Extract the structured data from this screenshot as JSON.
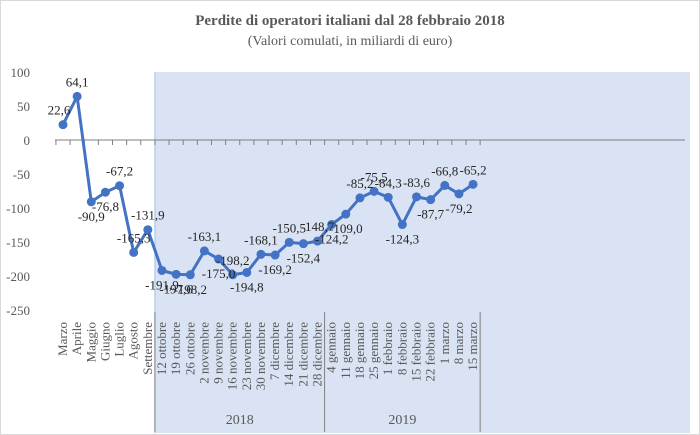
{
  "chart_data": {
    "type": "line",
    "title": "Perdite di operatori italiani dal 28 febbraio 2018",
    "subtitle": "(Valori comulati, in miliardi di euro)",
    "ylim": [
      -250,
      100
    ],
    "y_ticks": [
      100,
      50,
      0,
      -50,
      -100,
      -150,
      -200,
      -250
    ],
    "grid": false,
    "line_color": "#4472c4",
    "shade_color": "#dae3f3",
    "categories": [
      "Marzo",
      "Aprile",
      "Maggio",
      "Giugno",
      "Luglio",
      "Agosto",
      "Settembre",
      "12 ottobre",
      "19 ottobre",
      "26 ottobre",
      "2 novembre",
      "9 novembre",
      "16 novembre",
      "23 novembre",
      "30 novembre",
      "7 dicembre",
      "14 dicembre",
      "21 dicembre",
      "28 dicembre",
      "4 gennaio",
      "11 gennaio",
      "18 gennaio",
      "25 gennaio",
      "1 febbraio",
      "8 febbraio",
      "15 febbraio",
      "22 febbraio",
      "1 marzo",
      "8 marzo",
      "15 marzo"
    ],
    "values": [
      22.6,
      64.1,
      -90.9,
      -76.8,
      -67.2,
      -165.3,
      -131.9,
      -191.9,
      -197.6,
      -198.2,
      -163.1,
      -175.0,
      -198.2,
      -194.8,
      -168.1,
      -169.2,
      -150.5,
      -152.4,
      -148.7,
      -124.2,
      -109.0,
      -85.2,
      -75.5,
      -84.3,
      -124.3,
      -83.6,
      -87.7,
      -66.8,
      -79.2,
      -65.2
    ],
    "data_labels": [
      "22,6",
      "64,1",
      "-90,9",
      "-76,8",
      "-67,2",
      "-165,3",
      "-131,9",
      "-191,9",
      "-197,6",
      "-198,2",
      "-163,1",
      "-175,0",
      "-198,2",
      "-194,8",
      "-168,1",
      "-169,2",
      "-150,5",
      "-152,4",
      "-148,7",
      "-124,2",
      "-109,0",
      "-85,2",
      "-75,5",
      "-84,3",
      "-124,3",
      "-83,6",
      "-87,7",
      "-66,8",
      "-79,2",
      "-65,2"
    ],
    "groups": [
      {
        "label": "2018",
        "start": 7,
        "end": 18
      },
      {
        "label": "2019",
        "start": 19,
        "end": 29
      }
    ],
    "shaded_from": 7
  }
}
